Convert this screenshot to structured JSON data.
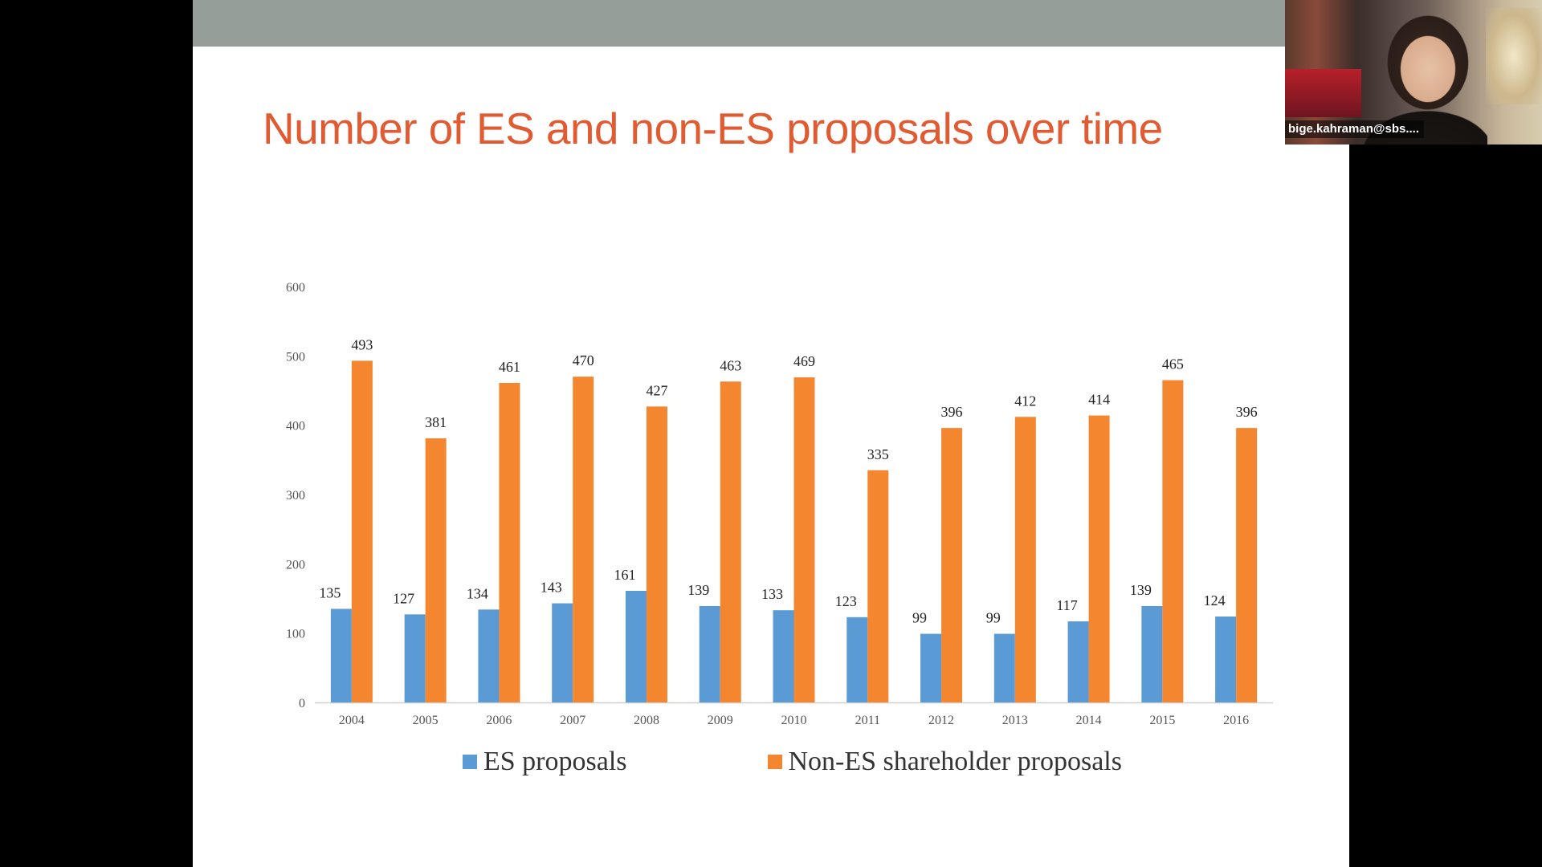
{
  "slide": {
    "title": "Number of ES and non-ES proposals over time"
  },
  "video": {
    "participant_name": "bige.kahraman@sbs...."
  },
  "chart_data": {
    "type": "bar",
    "title": "",
    "xlabel": "",
    "ylabel": "",
    "ylim": [
      0,
      600
    ],
    "yticks": [
      0,
      100,
      200,
      300,
      400,
      500,
      600
    ],
    "categories": [
      "2004",
      "2005",
      "2006",
      "2007",
      "2008",
      "2009",
      "2010",
      "2011",
      "2012",
      "2013",
      "2014",
      "2015",
      "2016"
    ],
    "series": [
      {
        "name": "ES proposals",
        "color": "#5b9bd5",
        "values": [
          135,
          127,
          134,
          143,
          161,
          139,
          133,
          123,
          99,
          99,
          117,
          139,
          124
        ]
      },
      {
        "name": "Non-ES shareholder proposals",
        "color": "#f58630",
        "values": [
          493,
          381,
          461,
          470,
          427,
          463,
          469,
          335,
          396,
          412,
          414,
          465,
          396
        ]
      }
    ],
    "grid": false,
    "data_labels": true,
    "legend_position": "bottom"
  }
}
